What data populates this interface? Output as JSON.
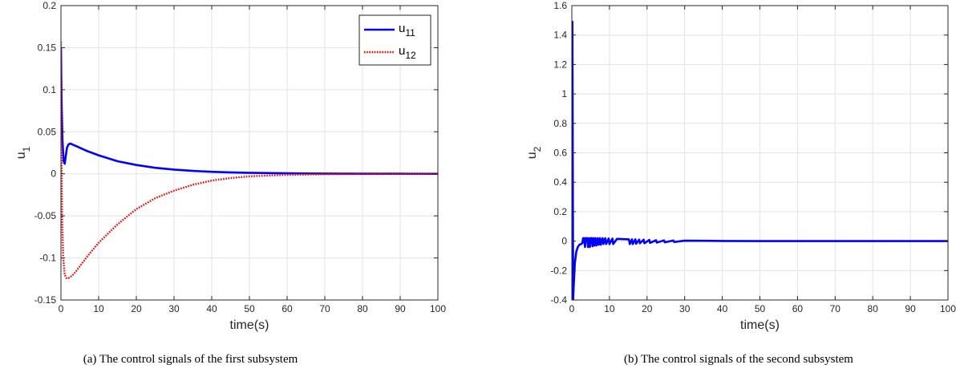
{
  "colors": {
    "series_u11": "#0000ff",
    "series_u12": "#ff0000",
    "grid": "#e3e3e3",
    "axis": "#262626"
  },
  "captions": {
    "a": "(a) The control signals of the first subsystem",
    "b": "(b) The control signals of the second subsystem"
  },
  "chart_data": [
    {
      "type": "line",
      "xlabel": "time(s)",
      "ylabel": "u",
      "ylabel_sub": "1",
      "xlim": [
        0,
        100
      ],
      "ylim": [
        -0.15,
        0.2
      ],
      "xticks": [
        0,
        10,
        20,
        30,
        40,
        50,
        60,
        70,
        80,
        90,
        100
      ],
      "yticks": [
        -0.15,
        -0.1,
        -0.05,
        0,
        0.05,
        0.1,
        0.15,
        0.2
      ],
      "ytick_labels": [
        "-0.15",
        "-0.1",
        "-0.05",
        "0",
        "0.05",
        "0.1",
        "0.15",
        "0.2"
      ],
      "grid": true,
      "legend_position": "top-right",
      "series": [
        {
          "name": "u",
          "name_sub": "11",
          "style": "solid",
          "color": "#0000ff",
          "x": [
            0,
            0.15,
            0.4,
            0.7,
            1.0,
            1.3,
            1.6,
            2.0,
            2.5,
            3.0,
            4,
            5,
            7,
            10,
            15,
            20,
            25,
            30,
            35,
            40,
            45,
            50,
            60,
            70,
            80,
            90,
            100
          ],
          "y": [
            0.15,
            0.09,
            0.04,
            0.015,
            0.012,
            0.022,
            0.031,
            0.035,
            0.036,
            0.035,
            0.033,
            0.031,
            0.027,
            0.022,
            0.015,
            0.0105,
            0.0072,
            0.005,
            0.0035,
            0.0024,
            0.0017,
            0.0012,
            0.0006,
            0.0003,
            0.0001,
            0.0001,
            0.0
          ]
        },
        {
          "name": "u",
          "name_sub": "12",
          "style": "dotted",
          "color": "#ff0000",
          "x": [
            0,
            0.1,
            0.3,
            0.6,
            1.0,
            1.5,
            2.0,
            3,
            4,
            5,
            7,
            10,
            15,
            20,
            25,
            30,
            35,
            40,
            45,
            50,
            55,
            60,
            70,
            80,
            90,
            100
          ],
          "y": [
            0.157,
            0.05,
            -0.05,
            -0.1,
            -0.12,
            -0.124,
            -0.124,
            -0.121,
            -0.116,
            -0.11,
            -0.098,
            -0.082,
            -0.06,
            -0.042,
            -0.029,
            -0.02,
            -0.013,
            -0.008,
            -0.005,
            -0.003,
            -0.002,
            -0.0012,
            -0.0005,
            -0.0002,
            -0.0001,
            0.0
          ]
        }
      ]
    },
    {
      "type": "line",
      "xlabel": "time(s)",
      "ylabel": "u",
      "ylabel_sub": "2",
      "xlim": [
        0,
        100
      ],
      "ylim": [
        -0.4,
        1.6
      ],
      "xticks": [
        0,
        10,
        20,
        30,
        40,
        50,
        60,
        70,
        80,
        90,
        100
      ],
      "yticks": [
        -0.4,
        -0.2,
        0,
        0.2,
        0.4,
        0.6,
        0.8,
        1,
        1.2,
        1.4,
        1.6
      ],
      "ytick_labels": [
        "-0.4",
        "-0.2",
        "0",
        "0.2",
        "0.4",
        "0.6",
        "0.8",
        "1",
        "1.2",
        "1.4",
        "1.6"
      ],
      "grid": true,
      "series": [
        {
          "style": "solid",
          "color": "#0000ff",
          "x": [
            0,
            0.15,
            0.35,
            0.5,
            0.8,
            1.2,
            1.6,
            2.0,
            2.4,
            2.8,
            3.0,
            3.3,
            3.5,
            3.7,
            4.1,
            4.3,
            4.6,
            4.8,
            5.0,
            5.3,
            5.5,
            5.8,
            6.0,
            6.3,
            6.5,
            6.9,
            7.1,
            7.5,
            7.7,
            8.2,
            8.4,
            8.9,
            9.1,
            9.8,
            10.0,
            10.8,
            11.0,
            12,
            15.2,
            15.4,
            16.0,
            16.2,
            16.9,
            17.1,
            17.9,
            18.1,
            19.1,
            19.3,
            20.6,
            20.8,
            22.4,
            22.6,
            24.5,
            24.7,
            27.0,
            27.2,
            30,
            35,
            40,
            50,
            60,
            70,
            80,
            90,
            100
          ],
          "y": [
            1.49,
            1.49,
            -0.4,
            -0.3,
            -0.15,
            -0.07,
            -0.04,
            -0.025,
            -0.02,
            -0.015,
            0.02,
            0.02,
            -0.04,
            0.02,
            0.02,
            -0.04,
            0.02,
            -0.04,
            0.02,
            0.02,
            -0.035,
            0.02,
            -0.03,
            0.02,
            -0.03,
            0.02,
            -0.025,
            0.02,
            -0.025,
            0.02,
            -0.02,
            0.02,
            -0.02,
            0.018,
            -0.02,
            0.017,
            -0.02,
            0.015,
            0.012,
            -0.02,
            0.012,
            -0.02,
            0.012,
            -0.018,
            0.01,
            -0.015,
            0.01,
            -0.015,
            0.008,
            -0.012,
            0.006,
            -0.01,
            0.005,
            -0.008,
            0.004,
            -0.006,
            0.003,
            0.002,
            0.001,
            0.0,
            0.0,
            0.0,
            0.0,
            0.0,
            0.0
          ]
        }
      ]
    }
  ]
}
